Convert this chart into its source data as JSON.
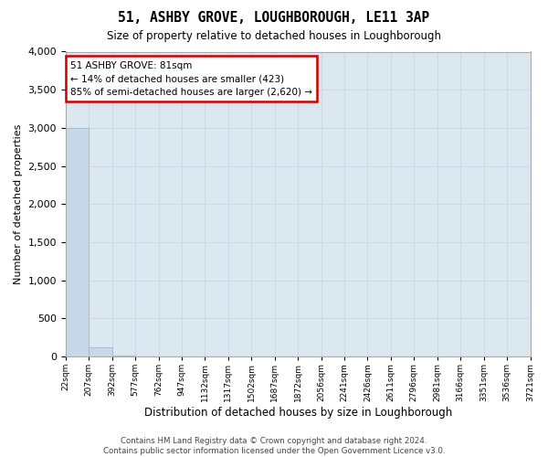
{
  "title": "51, ASHBY GROVE, LOUGHBOROUGH, LE11 3AP",
  "subtitle": "Size of property relative to detached houses in Loughborough",
  "xlabel": "Distribution of detached houses by size in Loughborough",
  "ylabel": "Number of detached properties",
  "bin_edges": [
    "22sqm",
    "207sqm",
    "392sqm",
    "577sqm",
    "762sqm",
    "947sqm",
    "1132sqm",
    "1317sqm",
    "1502sqm",
    "1687sqm",
    "1872sqm",
    "2056sqm",
    "2241sqm",
    "2426sqm",
    "2611sqm",
    "2796sqm",
    "2981sqm",
    "3166sqm",
    "3351sqm",
    "3536sqm",
    "3721sqm"
  ],
  "bar_heights": [
    3000,
    120,
    5,
    2,
    1,
    1,
    1,
    0,
    0,
    0,
    0,
    0,
    0,
    0,
    0,
    0,
    0,
    0,
    0,
    0
  ],
  "bar_color": "#c8d8e8",
  "bar_edgecolor": "#a0b8cc",
  "ylim": [
    0,
    4000
  ],
  "yticks": [
    0,
    500,
    1000,
    1500,
    2000,
    2500,
    3000,
    3500,
    4000
  ],
  "annotation_line1": "51 ASHBY GROVE: 81sqm",
  "annotation_line2": "← 14% of detached houses are smaller (423)",
  "annotation_line3": "85% of semi-detached houses are larger (2,620) →",
  "annotation_box_color": "#ffffff",
  "annotation_box_edgecolor": "#cc0000",
  "footer_line1": "Contains HM Land Registry data © Crown copyright and database right 2024.",
  "footer_line2": "Contains public sector information licensed under the Open Government Licence v3.0.",
  "grid_color": "#d0d8e8",
  "background_color": "#dce8f0"
}
